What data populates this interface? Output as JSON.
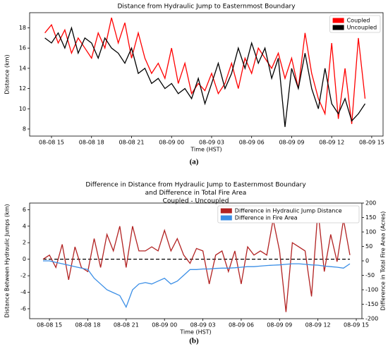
{
  "chart_data": [
    {
      "type": "line",
      "title": [
        "Distance from Hydraulic Jump to Easternmost Boundary"
      ],
      "xlabel": "Time (HST)",
      "ylabel": "Distance (km)",
      "caption": "(a)",
      "x": [
        14.5,
        15,
        15.5,
        16,
        16.5,
        17,
        17.5,
        18,
        18.5,
        19,
        19.5,
        20,
        20.5,
        21,
        21.5,
        22,
        22.5,
        23,
        23.5,
        24,
        24.5,
        25,
        25.5,
        26,
        26.5,
        27,
        27.5,
        28,
        28.5,
        29,
        29.5,
        30,
        30.5,
        31,
        31.5,
        32,
        32.5,
        33,
        33.5,
        34,
        34.5,
        35,
        35.5,
        36,
        36.5,
        37,
        37.5,
        38,
        38.5
      ],
      "series": [
        {
          "name": "Coupled",
          "color": "#ff0000",
          "values": [
            17.5,
            18.3,
            16.5,
            17.8,
            15.5,
            17.0,
            16.0,
            15.0,
            17.5,
            16.0,
            19.0,
            16.5,
            18.5,
            15.0,
            17.5,
            15.0,
            13.5,
            14.5,
            13.0,
            16.0,
            12.5,
            14.5,
            11.5,
            12.5,
            11.8,
            13.5,
            11.5,
            12.5,
            14.5,
            12.0,
            15.0,
            13.5,
            16.0,
            15.0,
            14.0,
            15.5,
            13.0,
            15.0,
            12.0,
            17.5,
            13.5,
            11.0,
            9.5,
            16.5,
            9.0,
            14.0,
            8.5,
            17.0,
            11.0
          ]
        },
        {
          "name": "Uncoupled",
          "color": "#000000",
          "values": [
            17,
            16.5,
            17.5,
            16,
            18,
            15.5,
            17,
            16.5,
            15,
            17,
            16,
            15.5,
            14.5,
            16,
            13.5,
            14,
            12.5,
            13,
            12,
            12.5,
            11.5,
            12,
            11,
            13,
            10.5,
            12.5,
            14.5,
            12,
            13.5,
            16,
            14,
            16.5,
            14.5,
            16,
            13,
            15,
            8.2,
            14,
            12,
            15.5,
            12,
            10,
            14,
            10.5,
            9.5,
            11,
            8.8,
            9.5,
            10.5
          ]
        }
      ],
      "xlim": [
        13.36,
        39.85
      ],
      "xticks": [
        {
          "value": 15,
          "label": "08-08 15"
        },
        {
          "value": 18,
          "label": "08-08 18"
        },
        {
          "value": 21,
          "label": "08-08 21"
        },
        {
          "value": 24,
          "label": "08-09 00"
        },
        {
          "value": 27,
          "label": "08-09 03"
        },
        {
          "value": 30,
          "label": "08-09 06"
        },
        {
          "value": 33,
          "label": "08-09 09"
        },
        {
          "value": 36,
          "label": "08-09 12"
        },
        {
          "value": 39,
          "label": "08-09 15"
        }
      ],
      "ylim": [
        7.3,
        19.5
      ],
      "yticks": [
        8,
        10,
        12,
        14,
        16,
        18
      ],
      "legend": "upper right"
    },
    {
      "type": "line",
      "title": [
        "Difference in Distance from Hydraulic Jump to Easternmost Boundary",
        "and Difference in Total Fire Area",
        "Coupled - Uncoupled"
      ],
      "xlabel": "Time (HST)",
      "ylabel": "Distance Between Hydraulic Jumps (km)",
      "y2label": "Difference in Total Fire Area (Acres)",
      "caption": "(b)",
      "x": [
        14.5,
        15,
        15.5,
        16,
        16.5,
        17,
        17.5,
        18,
        18.5,
        19,
        19.5,
        20,
        20.5,
        21,
        21.5,
        22,
        22.5,
        23,
        23.5,
        24,
        24.5,
        25,
        25.5,
        26,
        26.5,
        27,
        27.5,
        28,
        28.5,
        29,
        29.5,
        30,
        30.5,
        31,
        31.5,
        32,
        32.5,
        33,
        33.5,
        34,
        34.5,
        35,
        35.5,
        36,
        36.5,
        37,
        37.5,
        38,
        38.5
      ],
      "series": [
        {
          "name": "Difference in Hydraulic Jump Distance",
          "color": "#b22222",
          "values": [
            0,
            0.5,
            -1,
            1.8,
            -2.5,
            1.5,
            -1,
            -1.5,
            2.5,
            -1,
            3,
            1,
            4,
            -1,
            4,
            1,
            1,
            1.5,
            1,
            3.5,
            1,
            2.5,
            0.5,
            -0.5,
            1.3,
            1,
            -3,
            0.5,
            1,
            -1.5,
            1,
            -3,
            1.5,
            0.5,
            1,
            0.5,
            4.8,
            1,
            -6.4,
            2,
            1.5,
            1,
            -4.5,
            6,
            -1.5,
            3,
            -0.3,
            4.8,
            0.5
          ]
        },
        {
          "name": "Difference in Fire Area",
          "color": "#3a8ee6",
          "axis": "y2",
          "values": [
            0,
            0,
            -5,
            -10,
            -15,
            -20,
            -25,
            -30,
            -60,
            -80,
            -100,
            -110,
            -120,
            -160,
            -100,
            -80,
            -75,
            -80,
            -70,
            -60,
            -80,
            -70,
            -50,
            -30,
            -30,
            -28,
            -28,
            -26,
            -25,
            -25,
            -24,
            -22,
            -20,
            -20,
            -18,
            -16,
            -15,
            -14,
            -12,
            -10,
            -10,
            -12,
            -14,
            -15,
            -18,
            -20,
            -22,
            -25,
            -10
          ]
        }
      ],
      "hline": 0,
      "xlim": [
        13.45,
        39.44
      ],
      "xticks": [
        {
          "value": 15,
          "label": "08-08 15"
        },
        {
          "value": 18,
          "label": "08-08 18"
        },
        {
          "value": 21,
          "label": "08-08 21"
        },
        {
          "value": 24,
          "label": "08-09 00"
        },
        {
          "value": 27,
          "label": "08-09 03"
        },
        {
          "value": 30,
          "label": "08-09 06"
        },
        {
          "value": 33,
          "label": "08-09 09"
        },
        {
          "value": 36,
          "label": "08-09 12"
        },
        {
          "value": 39,
          "label": "08-09 15"
        }
      ],
      "ylim": [
        -7.2,
        6.8
      ],
      "yticks": [
        -6,
        -4,
        -2,
        0,
        2,
        4,
        6
      ],
      "y2lim": [
        -200,
        200
      ],
      "y2ticks": [
        -200,
        -150,
        -100,
        -50,
        0,
        50,
        100,
        150,
        200
      ],
      "legend": "upper right"
    }
  ]
}
